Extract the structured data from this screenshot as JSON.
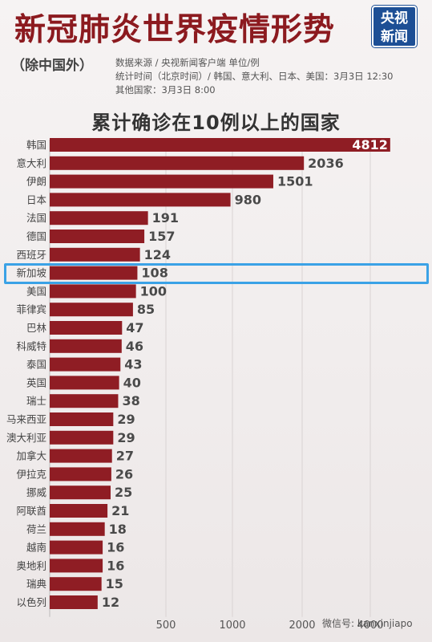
{
  "header": {
    "title": "新冠肺炎世界疫情形势",
    "subtitle": "（除中国外）",
    "source_line": "数据来源 / 央视新闻客户端  单位/例",
    "time_line": "统计时间（北京时间）/ 韩国、意大利、日本、美国：3月3日 12:30",
    "other_line": "其他国家：3月3日 8:00",
    "logo_line1": "央视",
    "logo_line2": "新闻"
  },
  "chart_data": {
    "type": "bar",
    "orientation": "horizontal",
    "title": "累计确诊在10例以上的国家",
    "categories": [
      "韩国",
      "意大利",
      "伊朗",
      "日本",
      "法国",
      "德国",
      "西班牙",
      "新加坡",
      "美国",
      "菲律宾",
      "巴林",
      "科威特",
      "泰国",
      "英国",
      "瑞士",
      "马来西亚",
      "澳大利亚",
      "加拿大",
      "伊拉克",
      "挪威",
      "阿联酋",
      "荷兰",
      "越南",
      "奥地利",
      "瑞典",
      "以色列"
    ],
    "values": [
      4812,
      2036,
      1501,
      980,
      191,
      157,
      124,
      108,
      100,
      85,
      47,
      46,
      43,
      40,
      38,
      29,
      29,
      27,
      26,
      25,
      21,
      18,
      16,
      16,
      15,
      12
    ],
    "value_labels": [
      "4812",
      "2036",
      "1501",
      "980",
      "191",
      "157",
      "124",
      "108",
      "100",
      "85",
      "47",
      "46",
      "43",
      "40",
      "38",
      "29",
      "29",
      "27",
      "26",
      "25",
      "21",
      "18",
      "16",
      "16",
      "15",
      "12"
    ],
    "x_ticks": [
      "500",
      "1000",
      "2000",
      "4000"
    ],
    "axis": "broken-log",
    "highlight": "新加坡",
    "bar_color": "#8f1d24",
    "grid": true
  },
  "watermark": "微信号: kanxinjiapo"
}
